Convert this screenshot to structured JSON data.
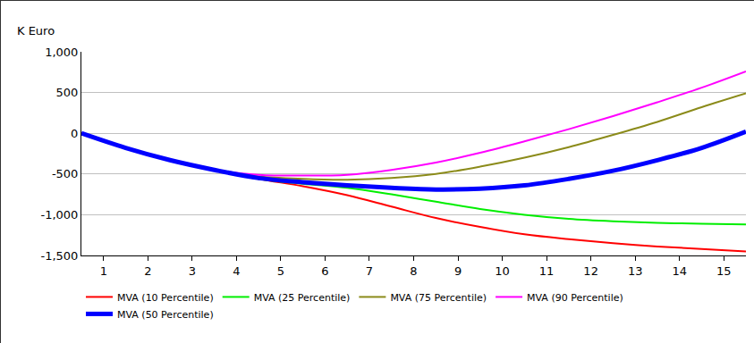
{
  "chart_data": {
    "type": "line",
    "y_label": "K Euro",
    "x": [
      0.5,
      1.5,
      2.5,
      3.5,
      4.5,
      5.5,
      6.5,
      7.5,
      8.5,
      9.5,
      10.5,
      11.5,
      12.5,
      13.5,
      14.5,
      15.5
    ],
    "xlim": [
      0.5,
      15.5
    ],
    "xticks": [
      1,
      2,
      3,
      4,
      5,
      6,
      7,
      8,
      9,
      10,
      11,
      12,
      13,
      14,
      15
    ],
    "ylim": [
      -1500,
      1000
    ],
    "yticks": [
      {
        "value": -1500,
        "label": "-1,500"
      },
      {
        "value": -1000,
        "label": "-1,000"
      },
      -500,
      0,
      500,
      {
        "value": 1000,
        "label": "1,000"
      }
    ],
    "grid": true,
    "legend": "bottom",
    "series": [
      {
        "name": "MVA (10 Percentile)",
        "color": "#ff0000",
        "line_style": "solid",
        "values": [
          0,
          -180,
          -330,
          -450,
          -560,
          -650,
          -760,
          -900,
          -1040,
          -1150,
          -1240,
          -1300,
          -1350,
          -1390,
          -1420,
          -1450
        ]
      },
      {
        "name": "MVA (25 Percentile)",
        "color": "#00ee00",
        "line_style": "solid",
        "values": [
          0,
          -180,
          -330,
          -450,
          -560,
          -620,
          -670,
          -750,
          -840,
          -930,
          -1000,
          -1050,
          -1080,
          -1100,
          -1110,
          -1120
        ]
      },
      {
        "name": "MVA (75 Percentile)",
        "color": "#8b8b1a",
        "line_style": "solid",
        "values": [
          0,
          -180,
          -330,
          -450,
          -530,
          -560,
          -570,
          -550,
          -500,
          -410,
          -300,
          -170,
          -20,
          140,
          320,
          490
        ]
      },
      {
        "name": "MVA (90 Percentile)",
        "color": "#ff00ff",
        "line_style": "solid",
        "values": [
          0,
          -180,
          -330,
          -450,
          -510,
          -520,
          -510,
          -450,
          -360,
          -240,
          -100,
          50,
          210,
          380,
          560,
          760
        ]
      },
      {
        "name": "MVA (50 Percentile)",
        "color": "#0000ff",
        "line_style": "thick",
        "values": [
          0,
          -180,
          -330,
          -450,
          -550,
          -600,
          -640,
          -670,
          -690,
          -680,
          -640,
          -560,
          -460,
          -330,
          -180,
          20
        ]
      }
    ]
  }
}
